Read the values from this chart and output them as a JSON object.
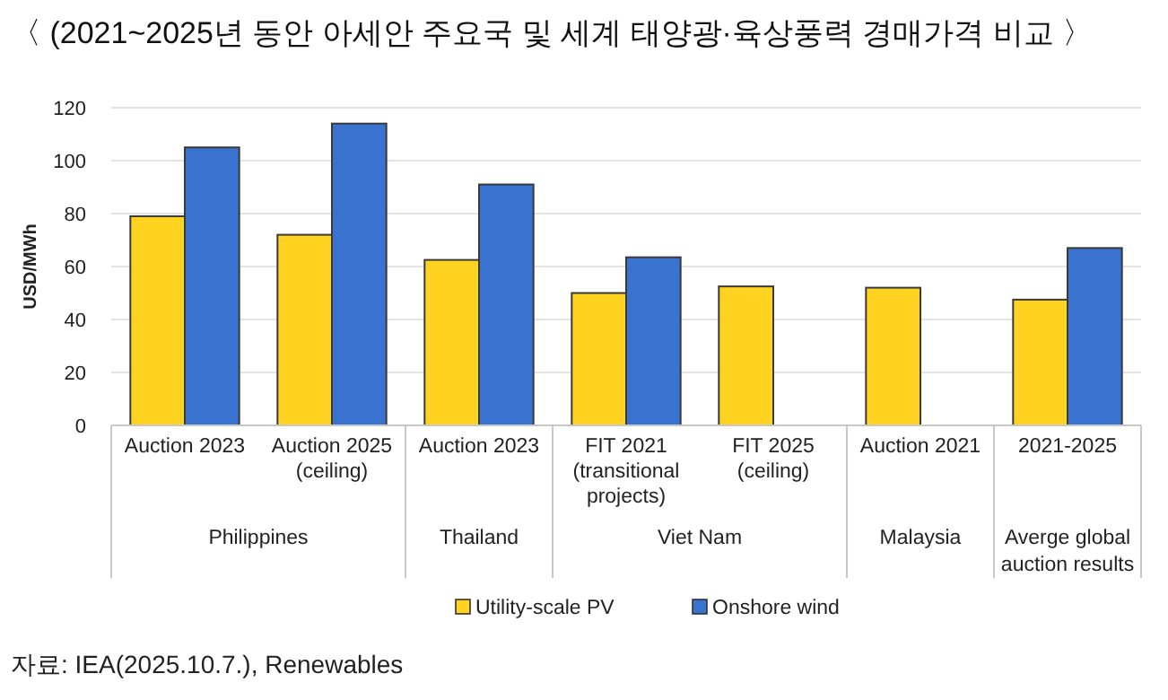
{
  "chart_data": {
    "type": "bar",
    "title": "〈 (2021~2025년 동안 아세안 주요국 및 세계 태양광·육상풍력 경매가격 비교 〉",
    "ylabel": "USD/MWh",
    "categories": [
      "Auction 2023",
      "Auction 2025\n(ceiling)",
      "Auction 2023",
      "FIT 2021\n(transitional\nprojects)",
      "FIT 2025\n(ceiling)",
      "Auction 2021",
      "2021-2025"
    ],
    "series": [
      {
        "name": "Utility-scale PV",
        "color": "#ffd320",
        "values": [
          79,
          72,
          62.5,
          50,
          52.5,
          52,
          47.5
        ]
      },
      {
        "name": "Onshore wind",
        "color": "#3a72d0",
        "values": [
          105,
          114,
          91,
          63.5,
          null,
          null,
          67
        ]
      }
    ],
    "ylim": [
      0,
      120
    ],
    "yticks": [
      0,
      20,
      40,
      60,
      80,
      100,
      120
    ],
    "grid": "y",
    "legend": "bottom",
    "annotations": [
      "Philippines",
      "Thailand",
      "Viet Nam",
      "Malaysia",
      "Averge global\nauction results",
      "자료: IEA(2025.10.7.), Renewables"
    ]
  }
}
